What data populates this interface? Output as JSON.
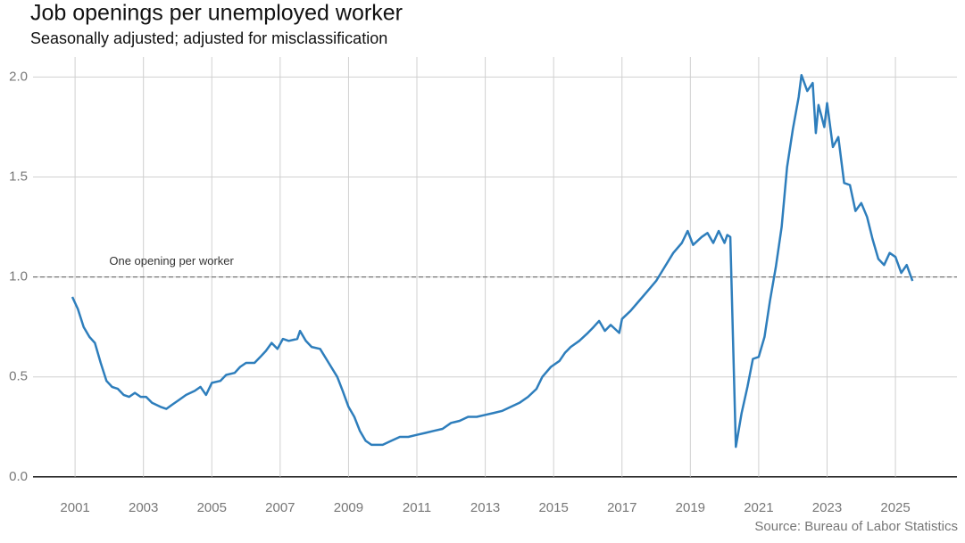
{
  "chart_data": {
    "type": "line",
    "title": "Job openings per unemployed worker",
    "subtitle": "Seasonally adjusted; adjusted for misclassification",
    "source": "Source: Bureau of Labor Statistics",
    "reference_line": {
      "value": 1,
      "label": "One opening per worker"
    },
    "x": [
      2000.92,
      2001.08,
      2001.25,
      2001.42,
      2001.58,
      2001.75,
      2001.92,
      2002.08,
      2002.25,
      2002.42,
      2002.58,
      2002.75,
      2002.92,
      2003.08,
      2003.25,
      2003.5,
      2003.67,
      2003.83,
      2004.0,
      2004.25,
      2004.5,
      2004.67,
      2004.83,
      2005.0,
      2005.25,
      2005.42,
      2005.67,
      2005.83,
      2006.0,
      2006.25,
      2006.42,
      2006.58,
      2006.75,
      2006.92,
      2007.08,
      2007.25,
      2007.5,
      2007.58,
      2007.75,
      2007.92,
      2008.17,
      2008.42,
      2008.67,
      2008.83,
      2009.0,
      2009.17,
      2009.33,
      2009.5,
      2009.67,
      2010.0,
      2010.25,
      2010.5,
      2010.75,
      2011.0,
      2011.25,
      2011.5,
      2011.75,
      2012.0,
      2012.25,
      2012.5,
      2012.75,
      2013.0,
      2013.25,
      2013.5,
      2013.75,
      2014.0,
      2014.25,
      2014.5,
      2014.67,
      2014.92,
      2015.17,
      2015.33,
      2015.5,
      2015.75,
      2016.0,
      2016.17,
      2016.33,
      2016.5,
      2016.67,
      2016.92,
      2017.0,
      2017.25,
      2017.5,
      2017.75,
      2018.0,
      2018.25,
      2018.5,
      2018.75,
      2018.92,
      2019.08,
      2019.33,
      2019.5,
      2019.67,
      2019.83,
      2020.0,
      2020.08,
      2020.17,
      2020.33,
      2020.5,
      2020.67,
      2020.83,
      2021.0,
      2021.17,
      2021.33,
      2021.5,
      2021.67,
      2021.83,
      2022.0,
      2022.17,
      2022.25,
      2022.42,
      2022.58,
      2022.67,
      2022.75,
      2022.92,
      2023.0,
      2023.17,
      2023.33,
      2023.5,
      2023.67,
      2023.83,
      2024.0,
      2024.17,
      2024.33,
      2024.5,
      2024.67,
      2024.83,
      2025.0,
      2025.17,
      2025.33,
      2025.5
    ],
    "series": [
      {
        "color": "#2e7ebc",
        "values": [
          0.9,
          0.84,
          0.75,
          0.7,
          0.67,
          0.57,
          0.48,
          0.45,
          0.44,
          0.41,
          0.4,
          0.42,
          0.4,
          0.4,
          0.37,
          0.35,
          0.34,
          0.36,
          0.38,
          0.41,
          0.43,
          0.45,
          0.41,
          0.47,
          0.48,
          0.51,
          0.52,
          0.55,
          0.57,
          0.57,
          0.6,
          0.63,
          0.67,
          0.64,
          0.69,
          0.68,
          0.69,
          0.73,
          0.68,
          0.65,
          0.64,
          0.57,
          0.5,
          0.43,
          0.35,
          0.3,
          0.23,
          0.18,
          0.16,
          0.16,
          0.18,
          0.2,
          0.2,
          0.21,
          0.22,
          0.23,
          0.24,
          0.27,
          0.28,
          0.3,
          0.3,
          0.31,
          0.32,
          0.33,
          0.35,
          0.37,
          0.4,
          0.44,
          0.5,
          0.55,
          0.58,
          0.62,
          0.65,
          0.68,
          0.72,
          0.75,
          0.78,
          0.73,
          0.76,
          0.72,
          0.79,
          0.83,
          0.88,
          0.93,
          0.98,
          1.05,
          1.12,
          1.17,
          1.23,
          1.16,
          1.2,
          1.22,
          1.17,
          1.23,
          1.17,
          1.21,
          1.2,
          0.15,
          0.32,
          0.45,
          0.59,
          0.6,
          0.7,
          0.88,
          1.05,
          1.25,
          1.55,
          1.74,
          1.9,
          2.01,
          1.93,
          1.97,
          1.72,
          1.86,
          1.75,
          1.87,
          1.65,
          1.7,
          1.47,
          1.46,
          1.33,
          1.37,
          1.3,
          1.19,
          1.09,
          1.06,
          1.12,
          1.1,
          1.02,
          1.06,
          0.98
        ]
      }
    ],
    "xlim": [
      1999.77,
      2026.8
    ],
    "xticks": [
      2001,
      2003,
      2005,
      2007,
      2009,
      2011,
      2013,
      2015,
      2017,
      2019,
      2021,
      2023,
      2025
    ],
    "ylim": [
      -0.05,
      2.1
    ],
    "yticks": [
      {
        "value": 0,
        "label": "0.0"
      },
      0.5,
      {
        "value": 1,
        "label": "1.0"
      },
      1.5,
      {
        "value": 2,
        "label": "2.0"
      }
    ],
    "grid": true
  }
}
